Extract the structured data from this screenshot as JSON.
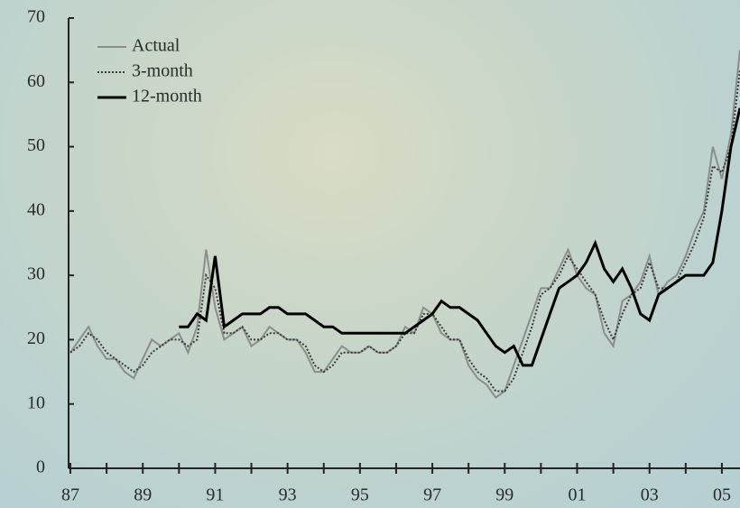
{
  "chart_data": {
    "type": "line",
    "x": [
      1987,
      1987.25,
      1987.5,
      1987.75,
      1988,
      1988.25,
      1988.5,
      1988.75,
      1989,
      1989.25,
      1989.5,
      1989.75,
      1990,
      1990.25,
      1990.5,
      1990.75,
      1991,
      1991.25,
      1991.5,
      1991.75,
      1992,
      1992.25,
      1992.5,
      1992.75,
      1993,
      1993.25,
      1993.5,
      1993.75,
      1994,
      1994.25,
      1994.5,
      1994.75,
      1995,
      1995.25,
      1995.5,
      1995.75,
      1996,
      1996.25,
      1996.5,
      1996.75,
      1997,
      1997.25,
      1997.5,
      1997.75,
      1998,
      1998.25,
      1998.5,
      1998.75,
      1999,
      1999.25,
      1999.5,
      1999.75,
      2000,
      2000.25,
      2000.5,
      2000.75,
      2001,
      2001.25,
      2001.5,
      2001.75,
      2002,
      2002.25,
      2002.5,
      2002.75,
      2003,
      2003.25,
      2003.5,
      2003.75,
      2004,
      2004.25,
      2004.5,
      2004.75,
      2005,
      2005.25,
      2005.5
    ],
    "series": [
      {
        "name": "Actual",
        "color": "#8c8c8c",
        "dash": "solid",
        "values": [
          18,
          20,
          22,
          19,
          17,
          17,
          15,
          14,
          17,
          20,
          19,
          20,
          21,
          18,
          22,
          34,
          25,
          20,
          21,
          22,
          19,
          20,
          22,
          21,
          20,
          20,
          18,
          15,
          15,
          17,
          19,
          18,
          18,
          19,
          18,
          18,
          19,
          22,
          21,
          25,
          24,
          21,
          20,
          20,
          16,
          14,
          13,
          11,
          12,
          16,
          20,
          24,
          28,
          28,
          31,
          34,
          30,
          28,
          27,
          21,
          19,
          26,
          27,
          29,
          33,
          27,
          29,
          30,
          33,
          37,
          40,
          50,
          45,
          52,
          65
        ]
      },
      {
        "name": "3-month",
        "color": "#3a3a3a",
        "dash": "dotted",
        "values": [
          18,
          19,
          21,
          20,
          18,
          17,
          16,
          15,
          16,
          18,
          19,
          20,
          20,
          19,
          20,
          30,
          28,
          21,
          21,
          22,
          20,
          20,
          21,
          21,
          20,
          20,
          19,
          16,
          15,
          16,
          18,
          18,
          18,
          19,
          18,
          18,
          19,
          21,
          21,
          24,
          24,
          22,
          20,
          20,
          17,
          15,
          14,
          12,
          12,
          14,
          18,
          22,
          27,
          28,
          30,
          33,
          31,
          29,
          27,
          23,
          20,
          24,
          27,
          28,
          32,
          28,
          28,
          29,
          32,
          35,
          39,
          47,
          46,
          50,
          62
        ]
      },
      {
        "name": "12-month",
        "color": "#000000",
        "dash": "solid",
        "values": [
          null,
          null,
          null,
          null,
          null,
          null,
          null,
          null,
          null,
          null,
          null,
          null,
          22,
          22,
          24,
          23,
          33,
          22,
          23,
          24,
          24,
          24,
          25,
          25,
          24,
          24,
          24,
          23,
          22,
          22,
          21,
          21,
          21,
          21,
          21,
          21,
          21,
          21,
          22,
          23,
          24,
          26,
          25,
          25,
          24,
          23,
          21,
          19,
          18,
          19,
          16,
          16,
          20,
          24,
          28,
          29,
          30,
          32,
          35,
          31,
          29,
          31,
          28,
          24,
          23,
          27,
          28,
          29,
          30,
          30,
          30,
          32,
          40,
          50,
          56
        ]
      }
    ],
    "xlim": [
      1987,
      2005.5
    ],
    "ylim": [
      0,
      70
    ],
    "yticks": [
      0,
      10,
      20,
      30,
      40,
      50,
      60,
      70
    ],
    "xticks": [
      {
        "value": 1987,
        "label": "87"
      },
      {
        "value": 1989,
        "label": "89"
      },
      {
        "value": 1991,
        "label": "91"
      },
      {
        "value": 1993,
        "label": "93"
      },
      {
        "value": 1995,
        "label": "95"
      },
      {
        "value": 1997,
        "label": "97"
      },
      {
        "value": 1999,
        "label": "99"
      },
      {
        "value": 2001,
        "label": "01"
      },
      {
        "value": 2003,
        "label": "03"
      },
      {
        "value": 2005,
        "label": "05"
      }
    ],
    "legend": "top-left"
  }
}
